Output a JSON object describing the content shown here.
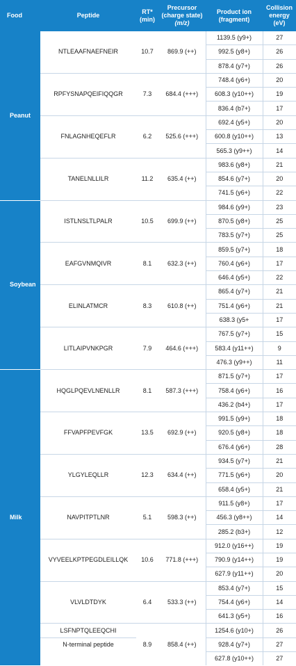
{
  "headers": {
    "food": "Food",
    "peptide": "Peptide",
    "rt_line1": "RT*",
    "rt_line2": "(min)",
    "prec_line1": "Precursor",
    "prec_line2": "(charge state)",
    "prec_line3": "(m/z)",
    "prod_line1": "Product ion",
    "prod_line2": "(fragment)",
    "ce_line1": "Collision",
    "ce_line2": "energy",
    "ce_line3": "(eV)"
  },
  "foods": [
    {
      "name": "Peanut",
      "peptides": [
        {
          "peptide": "NTLEAAFNAEFNEIR",
          "rt": "10.7",
          "precursor": "869.9 (++)",
          "fragments": [
            [
              "1139.5 (y9+)",
              "27"
            ],
            [
              "992.5 (y8+)",
              "26"
            ],
            [
              "878.4 (y7+)",
              "26"
            ]
          ]
        },
        {
          "peptide": "RPFYSNAPQEIFIQQGR",
          "rt": "7.3",
          "precursor": "684.4 (+++)",
          "fragments": [
            [
              "748.4 (y6+)",
              "20"
            ],
            [
              "608.3 (y10++)",
              "19"
            ],
            [
              "836.4 (b7+)",
              "17"
            ]
          ]
        },
        {
          "peptide": "FNLAGNHEQEFLR",
          "rt": "6.2",
          "precursor": "525.6 (+++)",
          "fragments": [
            [
              "692.4 (y5+)",
              "20"
            ],
            [
              "600.8 (y10++)",
              "13"
            ],
            [
              "565.3 (y9++)",
              "14"
            ]
          ]
        },
        {
          "peptide": "TANELNLLILR",
          "rt": "11.2",
          "precursor": "635.4 (++)",
          "fragments": [
            [
              "983.6 (y8+)",
              "21"
            ],
            [
              "854.6 (y7+)",
              "20"
            ],
            [
              "741.5 (y6+)",
              "22"
            ]
          ]
        }
      ]
    },
    {
      "name": "Soybean",
      "peptides": [
        {
          "peptide": "ISTLNSLTLPALR",
          "rt": "10.5",
          "precursor": "699.9 (++)",
          "fragments": [
            [
              "984.6 (y9+)",
              "23"
            ],
            [
              "870.5 (y8+)",
              "25"
            ],
            [
              "783.5 (y7+)",
              "25"
            ]
          ]
        },
        {
          "peptide": "EAFGVNMQIVR",
          "rt": "8.1",
          "precursor": "632.3 (++)",
          "fragments": [
            [
              "859.5 (y7+)",
              "18"
            ],
            [
              "760.4 (y6+)",
              "17"
            ],
            [
              "646.4 (y5+)",
              "22"
            ]
          ]
        },
        {
          "peptide": "ELINLATMCR",
          "rt": "8.3",
          "precursor": "610.8 (++)",
          "fragments": [
            [
              "865.4 (y7+)",
              "21"
            ],
            [
              "751.4 (y6+)",
              "21"
            ],
            [
              "638.3 (y5+",
              "17"
            ]
          ]
        },
        {
          "peptide": "LITLAIPVNKPGR",
          "rt": "7.9",
          "precursor": "464.6 (+++)",
          "fragments": [
            [
              "767.5 (y7+)",
              "15"
            ],
            [
              "583.4 (y11++)",
              "9"
            ],
            [
              "476.3 (y9++)",
              "11"
            ]
          ]
        }
      ]
    },
    {
      "name": "Milk",
      "peptides": [
        {
          "peptide": "HQGLPQEVLNENLLR",
          "rt": "8.1",
          "precursor": "587.3 (+++)",
          "fragments": [
            [
              "871.5 (y7+)",
              "17"
            ],
            [
              "758.4 (y6+)",
              "16"
            ],
            [
              "436.2 (b4+)",
              "17"
            ]
          ]
        },
        {
          "peptide": "FFVAPFPEVFGK",
          "rt": "13.5",
          "precursor": "692.9 (++)",
          "fragments": [
            [
              "991.5 (y9+)",
              "18"
            ],
            [
              "920.5 (y8+)",
              "18"
            ],
            [
              "676.4 (y6+)",
              "28"
            ]
          ]
        },
        {
          "peptide": "YLGYLEQLLR",
          "rt": "12.3",
          "precursor": "634.4 (++)",
          "fragments": [
            [
              "934.5 (y7+)",
              "21"
            ],
            [
              "771.5 (y6+)",
              "20"
            ],
            [
              "658.4 (y5+)",
              "21"
            ]
          ]
        },
        {
          "peptide": "NAVPITPTLNR",
          "rt": "5.1",
          "precursor": "598.3 (++)",
          "fragments": [
            [
              "911.5 (y8+)",
              "17"
            ],
            [
              "456.3 (y8++)",
              "14"
            ],
            [
              "285.2 (b3+)",
              "12"
            ]
          ]
        },
        {
          "peptide": "VYVEELKPTPEGDLEILLQK",
          "rt": "10.6",
          "precursor": "771.8 (+++)",
          "fragments": [
            [
              "912.0 (y16++)",
              "19"
            ],
            [
              "790.9 (y14++)",
              "19"
            ],
            [
              "627.9 (y11++)",
              "20"
            ]
          ]
        },
        {
          "peptide": "VLVLDTDYK",
          "rt": "6.4",
          "precursor": "533.3 (++)",
          "fragments": [
            [
              "853.4 (y7+)",
              "15"
            ],
            [
              "754.4 (y6+)",
              "14"
            ],
            [
              "641.3 (y5+)",
              "16"
            ]
          ]
        }
      ],
      "last": {
        "peptide_line1": "LSFNPTQLEEQCHI",
        "peptide_line2": "N-terminal peptide",
        "rt": "8.9",
        "precursor": "858.4 (++)",
        "fragments": [
          [
            "1254.6 (y10+)",
            "26"
          ],
          [
            "928.4 (y7+)",
            "27"
          ],
          [
            "627.8 (y10++)",
            "27"
          ]
        ]
      }
    }
  ]
}
